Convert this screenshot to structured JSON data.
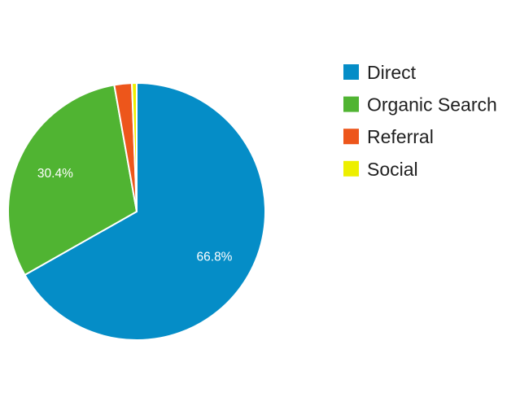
{
  "chart_data": {
    "type": "pie",
    "legend_position": "right",
    "slices": [
      {
        "label": "Direct",
        "value": 66.8,
        "color": "#058dc7",
        "display_label": "66.8%"
      },
      {
        "label": "Organic Search",
        "value": 30.4,
        "color": "#50b432",
        "display_label": "30.4%"
      },
      {
        "label": "Referral",
        "value": 2.2,
        "color": "#ed561b",
        "display_label": ""
      },
      {
        "label": "Social",
        "value": 0.6,
        "color": "#edef00",
        "display_label": ""
      }
    ]
  }
}
